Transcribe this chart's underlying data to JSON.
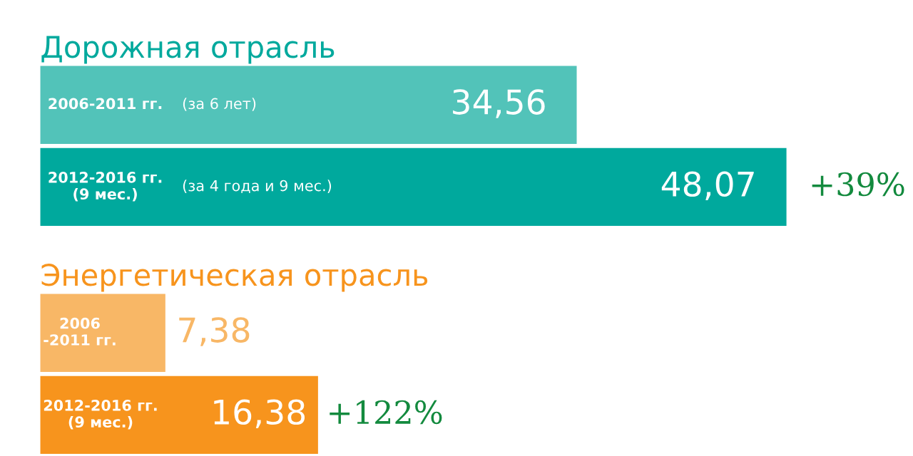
{
  "chart_data": [
    {
      "type": "bar",
      "orientation": "horizontal",
      "title": "Дорожная отрасль",
      "categories": [
        "2006-2011 гг.",
        "2012-2016 гг.\n(9 мес.)"
      ],
      "values": [
        34.56,
        48.07
      ],
      "value_labels": [
        "34,56",
        "48,07"
      ],
      "colors": [
        "#52c3b9",
        "#00a99d"
      ],
      "annotations": [
        "(за 6 лет)",
        "(за 4 года и 9 мес.)",
        "+39%"
      ]
    },
    {
      "type": "bar",
      "orientation": "horizontal",
      "title": "Энергетическая отрасль",
      "categories": [
        "2006\n-2011 гг.",
        "2012-2016 гг.\n(9 мес.)"
      ],
      "values": [
        7.38,
        16.38
      ],
      "value_labels": [
        "7,38",
        "16,38"
      ],
      "colors": [
        "#f8b766",
        "#f7941d"
      ],
      "annotations": [
        "+122%"
      ]
    }
  ]
}
